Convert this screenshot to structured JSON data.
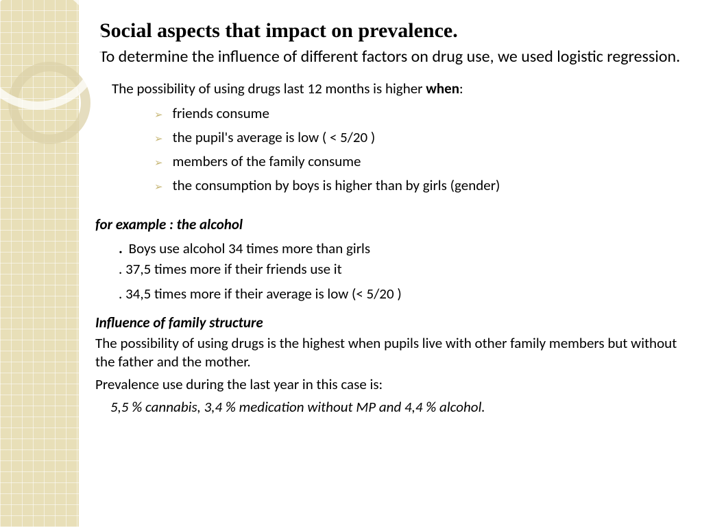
{
  "colors": {
    "sidebar_bg": "#e8dfb8",
    "grid_line": "rgba(255,255,255,0.55)",
    "ring_outer": "rgba(255,255,255,0.75)",
    "ring_inner": "rgba(220,210,170,0.75)",
    "bullet_chevron": "#c9b97a",
    "text": "#000000",
    "page_bg": "#ffffff"
  },
  "title": "Social aspects that impact on prevalence.",
  "subtitle": "To determine the influence of different factors on drug use, we used logistic regression.",
  "lead_prefix": "The possibility of using drugs last 12 months is higher ",
  "lead_bold": "when",
  "lead_suffix": ":",
  "bullets": [
    "friends consume",
    "the pupil's average is low ( < 5/20 )",
    "members of the family consume",
    "the consumption by boys is higher than by girls (gender)"
  ],
  "example": {
    "header": "for example :  the alcohol",
    "lines": [
      "Boys use alcohol 34 times more than girls",
      "37,5 times more if their friends use it",
      "34,5 times more if their average is low (< 5/20 )"
    ]
  },
  "family": {
    "header": "Influence of family structure",
    "line1": "The possibility of using drugs is the highest when pupils live with other family members but without the father and the mother.",
    "line2": "Prevalence use during the last year in this case is:",
    "prevalence": "5,5 %  cannabis,    3,4 % medication without MP        and 4,4 % alcohol."
  }
}
